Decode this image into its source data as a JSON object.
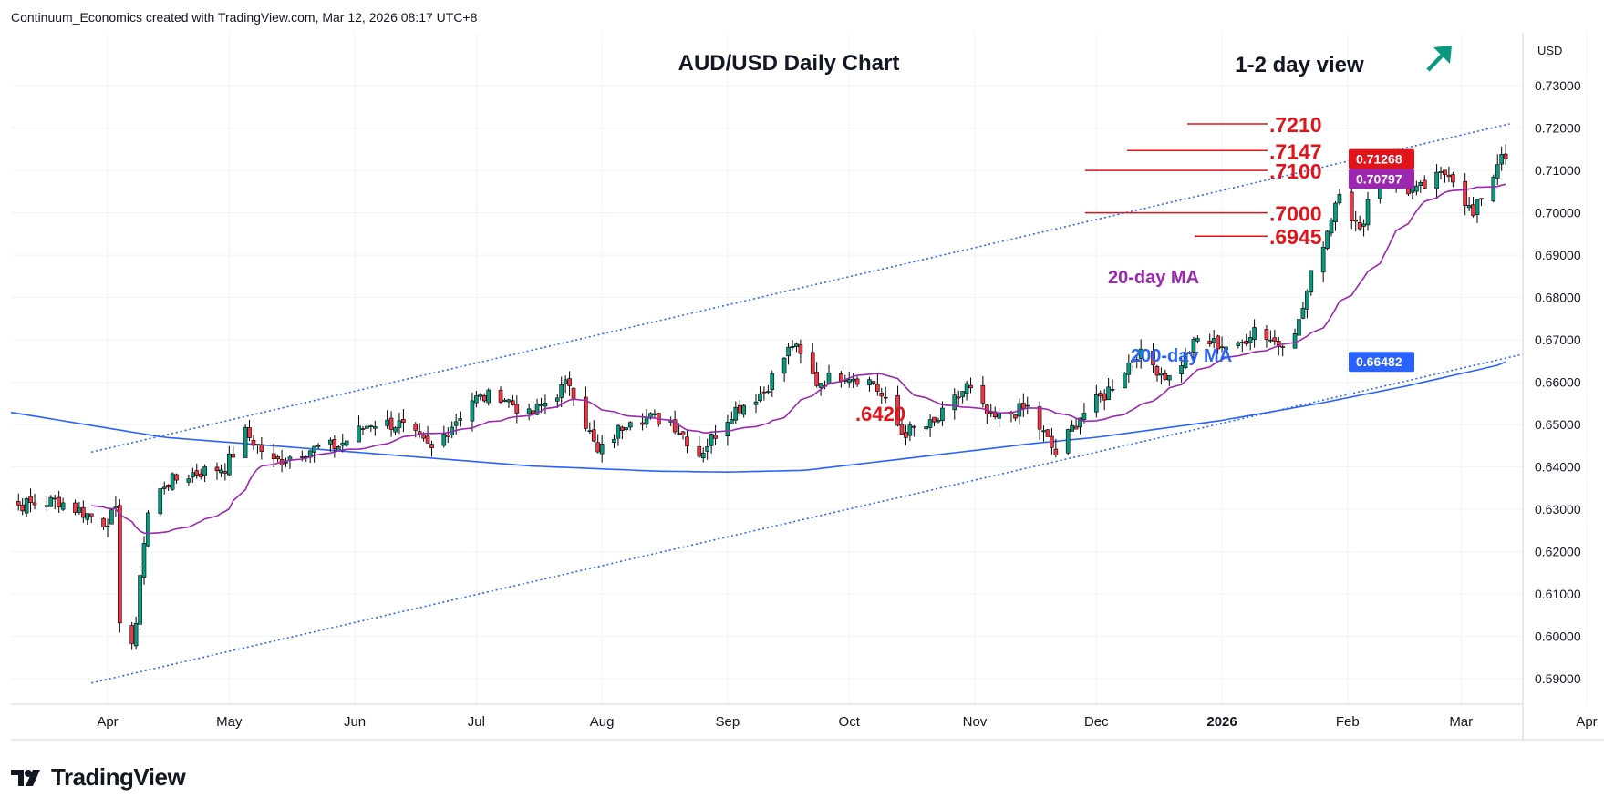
{
  "header": {
    "attribution": "Continuum_Economics created with TradingView.com, Mar 12, 2026 08:17 UTC+8"
  },
  "footer": {
    "brand": "TradingView"
  },
  "chart_data": {
    "type": "candlestick",
    "title": "AUD/USD Daily Chart",
    "view_label": "1-2 day view",
    "view_arrow": "up-right-arrow-icon",
    "currency": "USD",
    "ylim": [
      0.584,
      0.7425
    ],
    "y_ticks": [
      "0.73000",
      "0.72000",
      "0.71000",
      "0.70000",
      "0.69000",
      "0.68000",
      "0.67000",
      "0.66000",
      "0.65000",
      "0.64000",
      "0.63000",
      "0.62000",
      "0.61000",
      "0.60000",
      "0.59000"
    ],
    "x_ticks": [
      "Apr",
      "May",
      "Jun",
      "Jul",
      "Aug",
      "Sep",
      "Oct",
      "Nov",
      "Dec",
      "2026",
      "Feb",
      "Mar",
      "Apr"
    ],
    "grid": true,
    "price_badges": [
      {
        "label": "0.71268",
        "value": 0.71268,
        "color": "#e0141b"
      },
      {
        "label": "0.70797",
        "value": 0.70797,
        "color": "#9c27b0"
      },
      {
        "label": "0.66482",
        "value": 0.66482,
        "color": "#2962ff"
      }
    ],
    "levels": [
      {
        "label": ".7210",
        "value": 0.721
      },
      {
        "label": ".7147",
        "value": 0.7147
      },
      {
        "label": ".7100",
        "value": 0.71
      },
      {
        "label": ".7000",
        "value": 0.7
      },
      {
        "label": ".6945",
        "value": 0.6945
      }
    ],
    "low_annotation": {
      "label": ".6420",
      "value": 0.642
    },
    "ma_labels": [
      {
        "label": "20-day MA",
        "color": "#9c27b0"
      },
      {
        "label": "200-day MA",
        "color": "#2962ff"
      }
    ],
    "colors": {
      "up": "#089981",
      "down": "#f23645",
      "outline": "#000000",
      "ma20": "#9c27b0",
      "ma200": "#2962ff",
      "trend": "#2962ff",
      "levels": "#e0141b"
    },
    "trend_channel": {
      "upper": [
        [
          "2025-03-28",
          0.6435
        ],
        [
          "2026-03-13",
          0.721
        ]
      ],
      "lower": [
        [
          "2025-03-28",
          0.589
        ],
        [
          "2026-03-18",
          0.667
        ]
      ]
    },
    "ma200_points": [
      [
        "2025-03-01",
        0.654
      ],
      [
        "2025-04-15",
        0.647
      ],
      [
        "2025-06-01",
        0.6435
      ],
      [
        "2025-07-15",
        0.6402
      ],
      [
        "2025-08-15",
        0.639
      ],
      [
        "2025-09-01",
        0.6388
      ],
      [
        "2025-09-20",
        0.6392
      ],
      [
        "2025-10-15",
        0.642
      ],
      [
        "2025-11-15",
        0.6455
      ],
      [
        "2025-12-01",
        0.647
      ],
      [
        "2026-01-01",
        0.651
      ],
      [
        "2026-01-25",
        0.655
      ],
      [
        "2026-02-15",
        0.659
      ],
      [
        "2026-03-10",
        0.664
      ],
      [
        "2026-03-12",
        0.6648
      ]
    ],
    "close_points": [
      [
        "2025-03-01",
        0.633
      ],
      [
        "2025-03-10",
        0.631
      ],
      [
        "2025-03-20",
        0.632
      ],
      [
        "2025-03-31",
        0.627
      ],
      [
        "2025-04-03",
        0.629
      ],
      [
        "2025-04-04",
        0.6045
      ],
      [
        "2025-04-07",
        0.5985
      ],
      [
        "2025-04-08",
        0.6015
      ],
      [
        "2025-04-09",
        0.6155
      ],
      [
        "2025-04-11",
        0.629
      ],
      [
        "2025-04-15",
        0.636
      ],
      [
        "2025-04-22",
        0.6385
      ],
      [
        "2025-04-30",
        0.64
      ],
      [
        "2025-05-05",
        0.648
      ],
      [
        "2025-05-12",
        0.641
      ],
      [
        "2025-05-20",
        0.644
      ],
      [
        "2025-05-28",
        0.645
      ],
      [
        "2025-06-05",
        0.6505
      ],
      [
        "2025-06-12",
        0.65
      ],
      [
        "2025-06-20",
        0.644
      ],
      [
        "2025-06-30",
        0.656
      ],
      [
        "2025-07-07",
        0.657
      ],
      [
        "2025-07-14",
        0.652
      ],
      [
        "2025-07-24",
        0.66
      ],
      [
        "2025-07-31",
        0.643
      ],
      [
        "2025-08-08",
        0.652
      ],
      [
        "2025-08-18",
        0.651
      ],
      [
        "2025-08-25",
        0.643
      ],
      [
        "2025-09-02",
        0.653
      ],
      [
        "2025-09-10",
        0.658
      ],
      [
        "2025-09-17",
        0.669
      ],
      [
        "2025-09-23",
        0.66
      ],
      [
        "2025-09-30",
        0.662
      ],
      [
        "2025-10-07",
        0.66
      ],
      [
        "2025-10-14",
        0.648
      ],
      [
        "2025-10-22",
        0.65
      ],
      [
        "2025-10-30",
        0.659
      ],
      [
        "2025-11-05",
        0.651
      ],
      [
        "2025-11-14",
        0.654
      ],
      [
        "2025-11-21",
        0.643
      ],
      [
        "2025-11-27",
        0.652
      ],
      [
        "2025-12-03",
        0.657
      ],
      [
        "2025-12-11",
        0.667
      ],
      [
        "2025-12-19",
        0.661
      ],
      [
        "2025-12-26",
        0.67
      ],
      [
        "2026-01-05",
        0.668
      ],
      [
        "2026-01-09",
        0.673
      ],
      [
        "2026-01-15",
        0.669
      ],
      [
        "2026-01-20",
        0.674
      ],
      [
        "2026-01-23",
        0.685
      ],
      [
        "2026-01-27",
        0.696
      ],
      [
        "2026-01-30",
        0.706
      ],
      [
        "2026-02-04",
        0.695
      ],
      [
        "2026-02-06",
        0.703
      ],
      [
        "2026-02-10",
        0.71
      ],
      [
        "2026-02-13",
        0.706
      ],
      [
        "2026-02-18",
        0.705
      ],
      [
        "2026-02-23",
        0.708
      ],
      [
        "2026-02-26",
        0.71
      ],
      [
        "2026-03-02",
        0.703
      ],
      [
        "2026-03-04",
        0.699
      ],
      [
        "2026-03-06",
        0.704
      ],
      [
        "2026-03-09",
        0.709
      ],
      [
        "2026-03-11",
        0.715
      ],
      [
        "2026-03-12",
        0.71268
      ]
    ]
  }
}
